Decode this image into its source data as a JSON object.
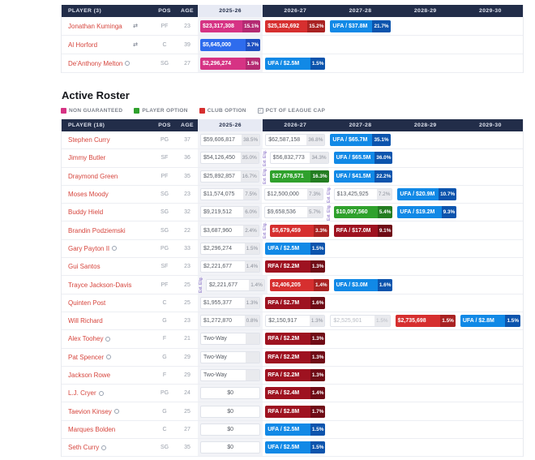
{
  "section": {
    "title": "Active Roster"
  },
  "labels": {
    "ext": "Ext. Elig."
  },
  "legend": {
    "items": [
      {
        "label": "NON GUARANTEED",
        "type": "ng"
      },
      {
        "label": "PLAYER OPTION",
        "type": "po"
      },
      {
        "label": "CLUB OPTION",
        "type": "co"
      },
      {
        "label": "PCT OF LEAGUE CAP",
        "type": "pct"
      }
    ]
  },
  "colors": {
    "header_bg": "#222d49",
    "header_text": "#dfe3ee",
    "season_hl_header_bg": "#e7eaf4",
    "season_hl_header_text": "#222d49",
    "season_col_bg": "#f2f3f7",
    "link": "#d6453d",
    "ng": "#d63384",
    "ng_dark": "#b42a72",
    "po": "#2fa12c",
    "po_dark": "#237d21",
    "co": "#d62f2f",
    "co_dark": "#a92222",
    "rfa": "#9e1220",
    "rfa_dark": "#6f0c16",
    "ufa": "#1189e6",
    "ufa_dark": "#0c54ad",
    "blue": "#2e6ced",
    "blue_dark": "#1e4fc0",
    "ext": "#7b5fc0",
    "muted": "#b8bcc4",
    "plain_text": "#555a63",
    "pct_bg": "#e9eaee",
    "pct_text": "#8a8f99",
    "pos_text": "#9aa0ab",
    "border": "#e8eaef",
    "border2": "#e0e3ea"
  },
  "tables": [
    {
      "header": {
        "player_label": "PLAYER (3)",
        "pos_label": "POS",
        "age_label": "AGE",
        "seasons": [
          "2025-26",
          "2026-27",
          "2027-28",
          "2028-29",
          "2029-30"
        ]
      },
      "rows": [
        {
          "name": "Jonathan Kuminga",
          "pos": "PF",
          "age": "23",
          "icon_right": "contract-option-icon",
          "cells": [
            {
              "col": 0,
              "value": "$23,317,308",
              "pct": "15.1%",
              "type": "ng"
            },
            {
              "col": 1,
              "value": "$25,182,692",
              "pct": "15.2%",
              "type": "co"
            },
            {
              "col": 2,
              "value": "UFA / $37.8M",
              "pct": "21.7%",
              "type": "ufa"
            }
          ]
        },
        {
          "name": "Al Horford",
          "pos": "C",
          "age": "39",
          "icon_right": "contract-option-icon",
          "cells": [
            {
              "col": 0,
              "value": "$5,645,000",
              "pct": "3.7%",
              "type": "blue"
            }
          ]
        },
        {
          "name": "De'Anthony Melton",
          "pos": "SG",
          "age": "27",
          "icon": "player-status-icon",
          "cells": [
            {
              "col": 0,
              "value": "$2,296,274",
              "pct": "1.5%",
              "type": "ng"
            },
            {
              "col": 1,
              "value": "UFA / $2.5M",
              "pct": "1.5%",
              "type": "ufa"
            }
          ]
        }
      ]
    },
    {
      "header": {
        "player_label": "PLAYER (18)",
        "pos_label": "POS",
        "age_label": "AGE",
        "seasons": [
          "2025-26",
          "2026-27",
          "2027-28",
          "2028-29",
          "2029-30"
        ]
      },
      "rows": [
        {
          "name": "Stephen Curry",
          "pos": "PG",
          "age": "37",
          "cells": [
            {
              "col": 0,
              "value": "$59,606,817",
              "pct": "38.5%",
              "type": "plain"
            },
            {
              "col": 1,
              "value": "$62,587,158",
              "pct": "36.8%",
              "type": "plain"
            },
            {
              "col": 2,
              "value": "UFA / $65.7M",
              "pct": "35.1%",
              "type": "ufa"
            }
          ]
        },
        {
          "name": "Jimmy Butler",
          "pos": "SF",
          "age": "36",
          "cells": [
            {
              "col": 0,
              "value": "$54,126,450",
              "pct": "35.0%",
              "type": "plain"
            },
            {
              "col": 1,
              "value": "$56,832,773",
              "pct": "34.3%",
              "type": "plain",
              "ext": true
            },
            {
              "col": 2,
              "value": "UFA / $65.5M",
              "pct": "36.0%",
              "type": "ufa"
            }
          ]
        },
        {
          "name": "Draymond Green",
          "pos": "PF",
          "age": "35",
          "cells": [
            {
              "col": 0,
              "value": "$25,892,857",
              "pct": "16.7%",
              "type": "plain"
            },
            {
              "col": 1,
              "value": "$27,678,571",
              "pct": "16.3%",
              "type": "po",
              "ext": true
            },
            {
              "col": 2,
              "value": "UFA / $41.5M",
              "pct": "22.2%",
              "type": "ufa"
            }
          ]
        },
        {
          "name": "Moses Moody",
          "pos": "SG",
          "age": "23",
          "cells": [
            {
              "col": 0,
              "value": "$11,574,075",
              "pct": "7.5%",
              "type": "plain"
            },
            {
              "col": 1,
              "value": "$12,500,000",
              "pct": "7.3%",
              "type": "plain"
            },
            {
              "col": 2,
              "value": "$13,425,925",
              "pct": "7.2%",
              "type": "plain",
              "ext": true
            },
            {
              "col": 3,
              "value": "UFA / $20.9M",
              "pct": "10.7%",
              "type": "ufa"
            }
          ]
        },
        {
          "name": "Buddy Hield",
          "pos": "SG",
          "age": "32",
          "cells": [
            {
              "col": 0,
              "value": "$9,219,512",
              "pct": "6.0%",
              "type": "plain"
            },
            {
              "col": 1,
              "value": "$9,658,536",
              "pct": "5.7%",
              "type": "plain"
            },
            {
              "col": 2,
              "value": "$10,097,560",
              "pct": "5.4%",
              "type": "po",
              "ext": true
            },
            {
              "col": 3,
              "value": "UFA / $19.2M",
              "pct": "9.3%",
              "type": "ufa"
            }
          ]
        },
        {
          "name": "Brandin Podziemski",
          "pos": "SG",
          "age": "22",
          "cells": [
            {
              "col": 0,
              "value": "$3,687,960",
              "pct": "2.4%",
              "type": "plain"
            },
            {
              "col": 1,
              "value": "$5,679,459",
              "pct": "3.3%",
              "type": "co",
              "ext": true
            },
            {
              "col": 2,
              "value": "RFA / $17.0M",
              "pct": "9.1%",
              "type": "rfa"
            }
          ]
        },
        {
          "name": "Gary Payton II",
          "pos": "PG",
          "age": "33",
          "icon": "player-status-icon",
          "cells": [
            {
              "col": 0,
              "value": "$2,296,274",
              "pct": "1.5%",
              "type": "plain"
            },
            {
              "col": 1,
              "value": "UFA / $2.5M",
              "pct": "1.5%",
              "type": "ufa"
            }
          ]
        },
        {
          "name": "Gui Santos",
          "pos": "SF",
          "age": "23",
          "cells": [
            {
              "col": 0,
              "value": "$2,221,677",
              "pct": "1.4%",
              "type": "plain"
            },
            {
              "col": 1,
              "value": "RFA / $2.2M",
              "pct": "1.3%",
              "type": "rfa"
            }
          ]
        },
        {
          "name": "Trayce Jackson-Davis",
          "pos": "PF",
          "age": "25",
          "cells": [
            {
              "col": 0,
              "value": "$2,221,677",
              "pct": "1.4%",
              "type": "plain",
              "ext": true
            },
            {
              "col": 1,
              "value": "$2,406,205",
              "pct": "1.4%",
              "type": "co"
            },
            {
              "col": 2,
              "value": "UFA / $3.0M",
              "pct": "1.6%",
              "type": "ufa"
            }
          ]
        },
        {
          "name": "Quinten Post",
          "pos": "C",
          "age": "25",
          "cells": [
            {
              "col": 0,
              "value": "$1,955,377",
              "pct": "1.3%",
              "type": "plain"
            },
            {
              "col": 1,
              "value": "RFA / $2.7M",
              "pct": "1.6%",
              "type": "rfa"
            }
          ]
        },
        {
          "name": "Will Richard",
          "pos": "G",
          "age": "23",
          "cells": [
            {
              "col": 0,
              "value": "$1,272,870",
              "pct": "0.8%",
              "type": "plain"
            },
            {
              "col": 1,
              "value": "$2,150,917",
              "pct": "1.3%",
              "type": "plain"
            },
            {
              "col": 2,
              "value": "$2,525,901",
              "pct": "1.5%",
              "type": "muted"
            },
            {
              "col": 3,
              "value": "$2,735,698",
              "pct": "1.5%",
              "type": "co"
            },
            {
              "col": 4,
              "value": "UFA / $2.8M",
              "pct": "1.5%",
              "type": "ufa"
            }
          ]
        },
        {
          "name": "Alex Toohey",
          "pos": "F",
          "age": "21",
          "icon": "player-status-icon",
          "cells": [
            {
              "col": 0,
              "value": "Two-Way",
              "pct": "",
              "type": "twoway"
            },
            {
              "col": 1,
              "value": "RFA / $2.2M",
              "pct": "1.3%",
              "type": "rfa"
            }
          ]
        },
        {
          "name": "Pat Spencer",
          "pos": "G",
          "age": "29",
          "icon": "player-status-icon",
          "cells": [
            {
              "col": 0,
              "value": "Two-Way",
              "pct": "",
              "type": "twoway"
            },
            {
              "col": 1,
              "value": "RFA / $2.2M",
              "pct": "1.3%",
              "type": "rfa"
            }
          ]
        },
        {
          "name": "Jackson Rowe",
          "pos": "F",
          "age": "29",
          "cells": [
            {
              "col": 0,
              "value": "Two-Way",
              "pct": "",
              "type": "twoway"
            },
            {
              "col": 1,
              "value": "RFA / $2.2M",
              "pct": "1.3%",
              "type": "rfa"
            }
          ]
        },
        {
          "name": "L.J. Cryer",
          "pos": "PG",
          "age": "24",
          "icon": "player-status-icon",
          "cells": [
            {
              "col": 0,
              "value": "$0",
              "pct": "",
              "type": "zero"
            },
            {
              "col": 1,
              "value": "RFA / $2.4M",
              "pct": "1.4%",
              "type": "rfa"
            }
          ]
        },
        {
          "name": "Taevion Kinsey",
          "pos": "G",
          "age": "25",
          "icon": "player-status-icon",
          "cells": [
            {
              "col": 0,
              "value": "$0",
              "pct": "",
              "type": "zero"
            },
            {
              "col": 1,
              "value": "RFA / $2.8M",
              "pct": "1.7%",
              "type": "rfa"
            }
          ]
        },
        {
          "name": "Marques Bolden",
          "pos": "C",
          "age": "27",
          "cells": [
            {
              "col": 0,
              "value": "$0",
              "pct": "",
              "type": "zero"
            },
            {
              "col": 1,
              "value": "UFA / $2.5M",
              "pct": "1.5%",
              "type": "ufa"
            }
          ]
        },
        {
          "name": "Seth Curry",
          "pos": "SG",
          "age": "35",
          "icon": "player-status-icon",
          "cells": [
            {
              "col": 0,
              "value": "$0",
              "pct": "",
              "type": "zero"
            },
            {
              "col": 1,
              "value": "UFA / $2.5M",
              "pct": "1.5%",
              "type": "ufa"
            }
          ]
        }
      ]
    }
  ]
}
